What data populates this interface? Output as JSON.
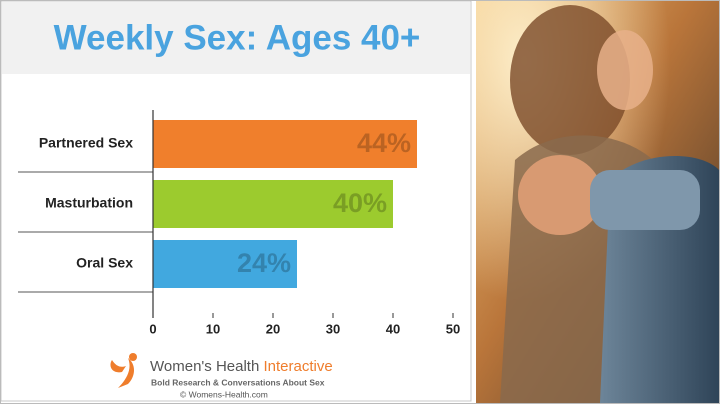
{
  "chart_data": {
    "type": "bar",
    "orientation": "horizontal",
    "title": "Weekly Sex: Ages 40+",
    "categories": [
      "Partnered Sex",
      "Masturbation",
      "Oral Sex"
    ],
    "values": [
      44,
      40,
      24
    ],
    "value_labels": [
      "44%",
      "40%",
      "24%"
    ],
    "colors": [
      "#f07f2c",
      "#9ccb2e",
      "#41a8df"
    ],
    "xlim": [
      0,
      50
    ],
    "xticks": [
      0,
      10,
      20,
      30,
      40,
      50
    ],
    "grid": false
  },
  "source": {
    "brand": "Women's Health",
    "brand_accent": "Interactive",
    "tagline": "Bold Research & Conversations About Sex",
    "site": "© Womens-Health.com"
  }
}
